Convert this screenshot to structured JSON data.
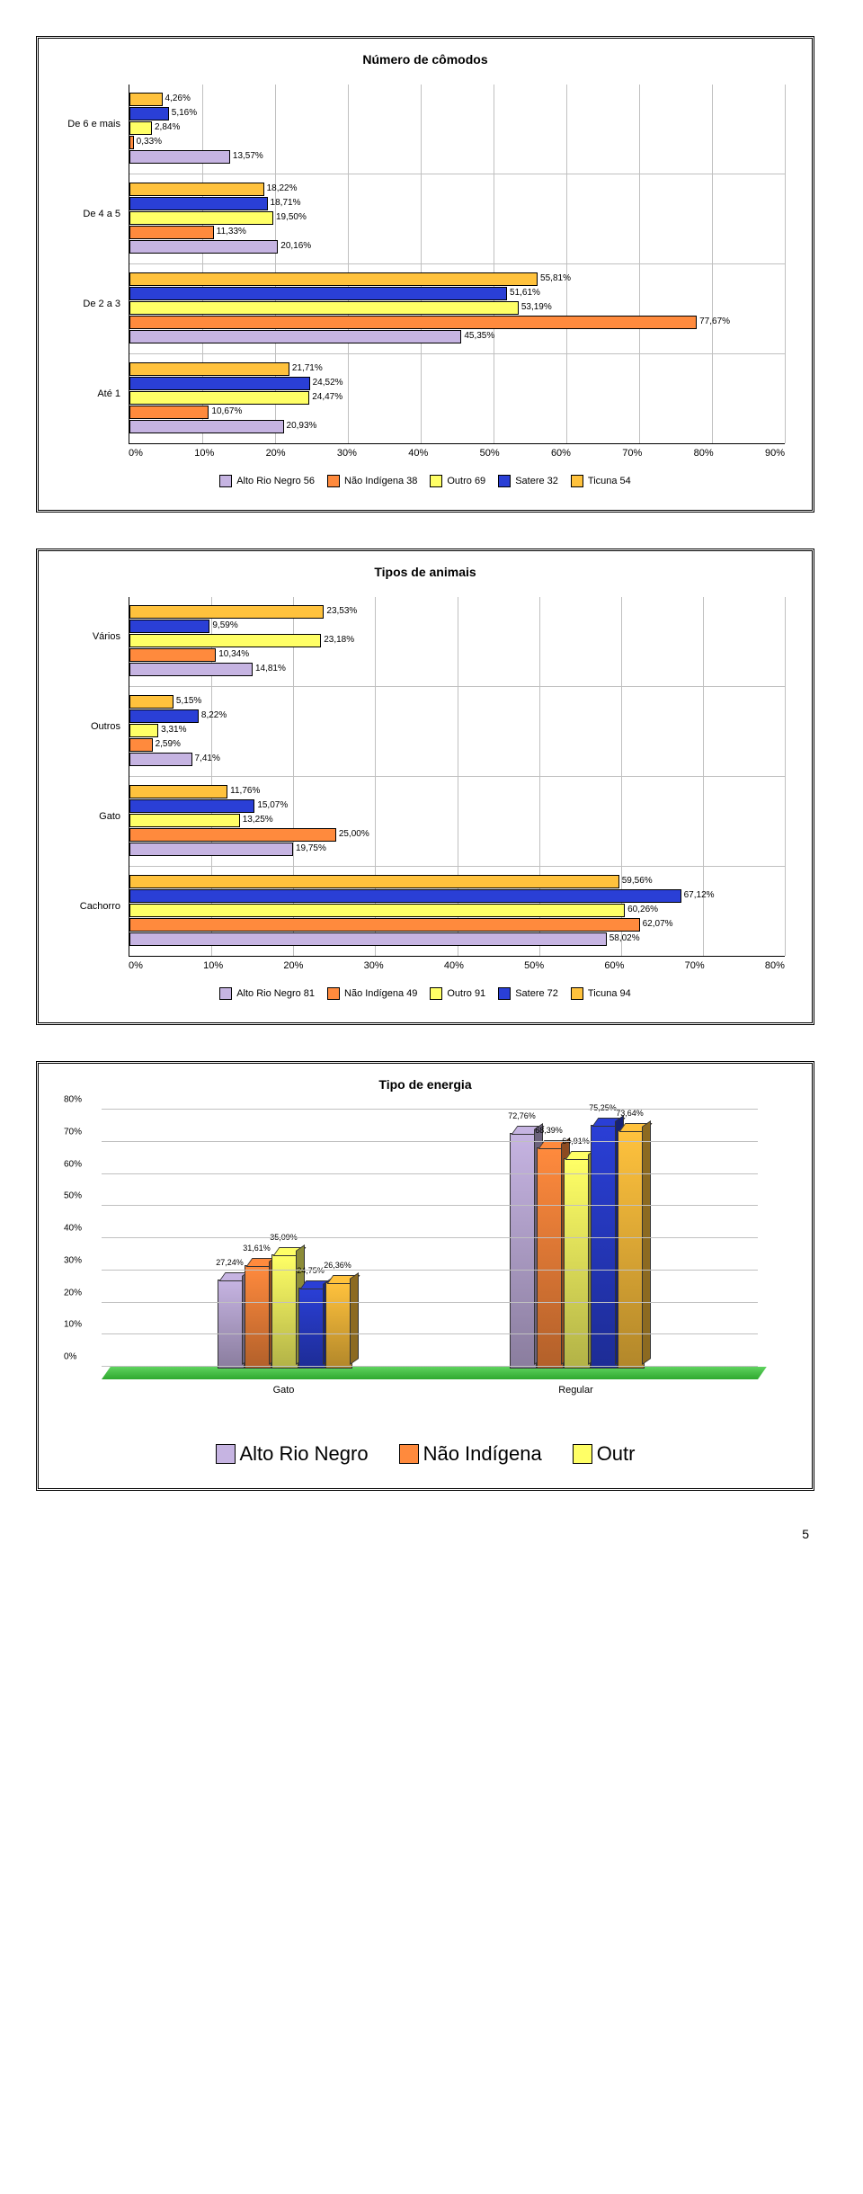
{
  "colors": {
    "series": [
      "#c6b4e2",
      "#ff8a3d",
      "#ffff66",
      "#2a3fd6",
      "#ffc23d"
    ],
    "grid": "#c0c0c0",
    "floor_top": "#5fd35f",
    "floor_bot": "#2fa82f"
  },
  "series_names": [
    "Alto Rio Negro",
    "Não Indígena",
    "Outro",
    "Satere",
    "Ticuna"
  ],
  "chart1": {
    "title": "Número de cômodos",
    "xmax": 90,
    "xticks": [
      "0%",
      "10%",
      "20%",
      "30%",
      "40%",
      "50%",
      "60%",
      "70%",
      "80%",
      "90%"
    ],
    "legend_suffix": [
      "56",
      "38",
      "69",
      "32",
      "54"
    ],
    "groups": [
      {
        "label": "De 6 e mais",
        "values": [
          13.57,
          0.33,
          2.84,
          5.16,
          4.26
        ],
        "value_labels": [
          "13,57%",
          "0,33%",
          "2,84%",
          "5,16%",
          "4,26%"
        ]
      },
      {
        "label": "De 4 a 5",
        "values": [
          20.16,
          11.33,
          19.5,
          18.71,
          18.22
        ],
        "value_labels": [
          "20,16%",
          "11,33%",
          "19,50%",
          "18,71%",
          "18,22%"
        ]
      },
      {
        "label": "De 2 a 3",
        "values": [
          45.35,
          77.67,
          53.19,
          51.61,
          55.81
        ],
        "value_labels": [
          "45,35%",
          "77,67%",
          "53,19%",
          "51,61%",
          "55,81%"
        ]
      },
      {
        "label": "Até 1",
        "values": [
          20.93,
          10.67,
          24.47,
          24.52,
          21.71
        ],
        "value_labels": [
          "20,93%",
          "10,67%",
          "24,47%",
          "24,52%",
          "21,71%"
        ]
      }
    ]
  },
  "chart2": {
    "title": "Tipos de animais",
    "xmax": 80,
    "xticks": [
      "0%",
      "10%",
      "20%",
      "30%",
      "40%",
      "50%",
      "60%",
      "70%",
      "80%"
    ],
    "legend_suffix": [
      "81",
      "49",
      "91",
      "72",
      "94"
    ],
    "groups": [
      {
        "label": "Vários",
        "values": [
          14.81,
          10.34,
          23.18,
          9.59,
          23.53
        ],
        "value_labels": [
          "14,81%",
          "10,34%",
          "23,18%",
          "9,59%",
          "23,53%"
        ]
      },
      {
        "label": "Outros",
        "values": [
          7.41,
          2.59,
          3.31,
          8.22,
          5.15
        ],
        "value_labels": [
          "7,41%",
          "2,59%",
          "3,31%",
          "8,22%",
          "5,15%"
        ]
      },
      {
        "label": "Gato",
        "values": [
          19.75,
          25.0,
          13.25,
          15.07,
          11.76
        ],
        "value_labels": [
          "19,75%",
          "25,00%",
          "13,25%",
          "15,07%",
          "11,76%"
        ]
      },
      {
        "label": "Cachorro",
        "values": [
          58.02,
          62.07,
          60.26,
          67.12,
          59.56
        ],
        "value_labels": [
          "58,02%",
          "62,07%",
          "60,26%",
          "67,12%",
          "59,56%"
        ]
      }
    ]
  },
  "chart3": {
    "title": "Tipo de energia",
    "ymax": 80,
    "yticks": [
      "0%",
      "10%",
      "20%",
      "30%",
      "40%",
      "50%",
      "60%",
      "70%",
      "80%"
    ],
    "groups": [
      {
        "label": "Gato",
        "values": [
          27.24,
          31.61,
          35.09,
          24.75,
          26.36
        ],
        "value_labels": [
          "27,24%",
          "31,61%",
          "35,09%",
          "24,75%",
          "26,36%"
        ]
      },
      {
        "label": "Regular",
        "values": [
          72.76,
          68.39,
          64.91,
          75.25,
          73.64
        ],
        "value_labels": [
          "72,76%",
          "68,39%",
          "64,91%",
          "75,25%",
          "73,64%"
        ]
      }
    ],
    "legend_visible": [
      "Alto Rio Negro",
      "Não Indígena",
      "Outr"
    ]
  },
  "page_number": "5"
}
